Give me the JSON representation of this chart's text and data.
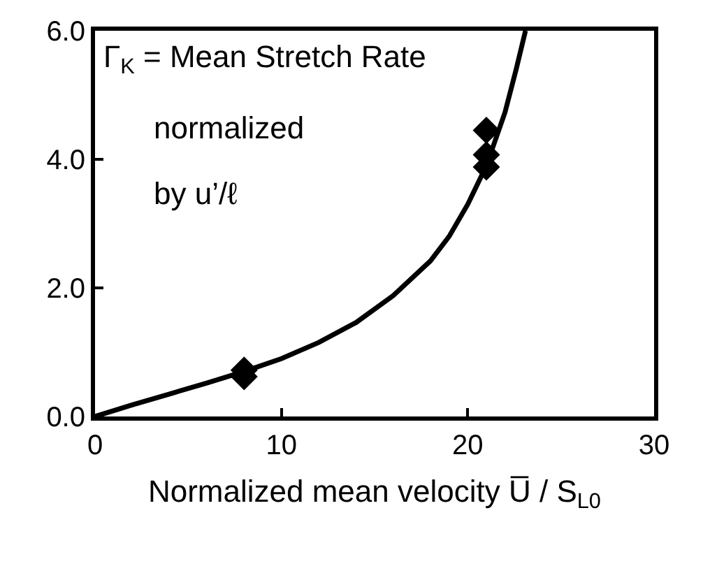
{
  "chart_data": {
    "type": "scatter",
    "xlabel": "Normalized mean velocity U̅ / S$_{L0}$",
    "annotations": [
      "Γ$_{K}$ = Mean Stretch Rate",
      "normalized",
      "by u’/ℓ"
    ],
    "series": [
      {
        "type": "line",
        "color": "#000000",
        "marker": "none",
        "line_style": "solid",
        "x": [
          0,
          2,
          4,
          6,
          8,
          10,
          12,
          14,
          16,
          18,
          19,
          20,
          21,
          22,
          22.6,
          23.1
        ],
        "values": [
          0,
          0.18,
          0.35,
          0.52,
          0.7,
          0.9,
          1.15,
          1.46,
          1.88,
          2.42,
          2.8,
          3.3,
          3.9,
          4.73,
          5.4,
          6.0
        ]
      },
      {
        "color": "#000000",
        "marker": "diamond",
        "x": [
          8,
          8,
          21,
          21,
          21
        ],
        "values": [
          0.62,
          0.72,
          3.88,
          4.07,
          4.45
        ]
      }
    ],
    "xlim": [
      0,
      30
    ],
    "xticks": [
      0,
      10,
      20,
      30
    ],
    "ylim": [
      0,
      6
    ],
    "yticks": [
      {
        "value": 0,
        "label": "0.0"
      },
      {
        "value": 2,
        "label": "2.0"
      },
      {
        "value": 4,
        "label": "4.0"
      },
      {
        "value": 6,
        "label": "6.0"
      }
    ]
  }
}
